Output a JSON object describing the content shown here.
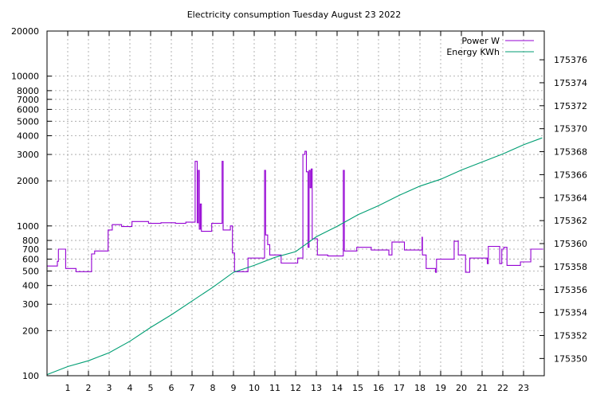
{
  "chart_data": {
    "type": "line",
    "title": "Electricity consumption Tuesday August 23 2022",
    "xlabel": "",
    "ylabel": "",
    "y2label": "",
    "xlim": [
      0,
      24
    ],
    "ylim": [
      100,
      20000
    ],
    "yscale": "log",
    "y2lim": [
      175348.5,
      175378.5
    ],
    "x_ticks": [
      1,
      2,
      3,
      4,
      5,
      6,
      7,
      8,
      9,
      10,
      11,
      12,
      13,
      14,
      15,
      16,
      17,
      18,
      19,
      20,
      21,
      22,
      23
    ],
    "y_ticks": [
      100,
      200,
      300,
      400,
      500,
      600,
      700,
      800,
      1000,
      2000,
      3000,
      4000,
      5000,
      6000,
      7000,
      8000,
      10000,
      20000
    ],
    "y_tick_labels": [
      "100",
      "200",
      "300",
      "400",
      "500",
      "600",
      "700",
      "800",
      "1000",
      "2000",
      "3000",
      "4000",
      "5000",
      "6000",
      "7000",
      "8000",
      "10000",
      "20000"
    ],
    "y2_ticks": [
      175350,
      175352,
      175354,
      175356,
      175358,
      175360,
      175362,
      175364,
      175366,
      175368,
      175370,
      175372,
      175374,
      175376
    ],
    "grid": true,
    "legend_position": "top-right",
    "series": [
      {
        "name": "Power W",
        "axis": "left",
        "color": "#9400d3",
        "style": "step",
        "points": [
          [
            0,
            540
          ],
          [
            0.5,
            580
          ],
          [
            0.55,
            700
          ],
          [
            0.9,
            520
          ],
          [
            1.4,
            495
          ],
          [
            2.15,
            650
          ],
          [
            2.3,
            680
          ],
          [
            2.95,
            940
          ],
          [
            3.15,
            1020
          ],
          [
            3.6,
            990
          ],
          [
            4.1,
            1070
          ],
          [
            4.9,
            1040
          ],
          [
            5.5,
            1050
          ],
          [
            6.2,
            1040
          ],
          [
            6.7,
            1060
          ],
          [
            7.15,
            2700
          ],
          [
            7.25,
            1050
          ],
          [
            7.3,
            2350
          ],
          [
            7.35,
            950
          ],
          [
            7.4,
            1400
          ],
          [
            7.45,
            920
          ],
          [
            7.95,
            1040
          ],
          [
            8.45,
            2700
          ],
          [
            8.5,
            940
          ],
          [
            8.85,
            1000
          ],
          [
            8.95,
            660
          ],
          [
            9.05,
            495
          ],
          [
            9.7,
            610
          ],
          [
            10.5,
            2350
          ],
          [
            10.55,
            870
          ],
          [
            10.65,
            750
          ],
          [
            10.75,
            640
          ],
          [
            11.3,
            565
          ],
          [
            12.1,
            610
          ],
          [
            12.35,
            3000
          ],
          [
            12.45,
            3150
          ],
          [
            12.52,
            2300
          ],
          [
            12.6,
            720
          ],
          [
            12.65,
            2350
          ],
          [
            12.7,
            1800
          ],
          [
            12.75,
            2400
          ],
          [
            12.8,
            820
          ],
          [
            13.05,
            640
          ],
          [
            13.55,
            630
          ],
          [
            14.3,
            2350
          ],
          [
            14.35,
            680
          ],
          [
            14.95,
            720
          ],
          [
            15.65,
            690
          ],
          [
            16.5,
            640
          ],
          [
            16.65,
            780
          ],
          [
            17.25,
            690
          ],
          [
            18.1,
            840
          ],
          [
            18.12,
            640
          ],
          [
            18.3,
            520
          ],
          [
            18.75,
            490
          ],
          [
            18.8,
            600
          ],
          [
            19.65,
            790
          ],
          [
            19.85,
            640
          ],
          [
            20.2,
            490
          ],
          [
            20.4,
            610
          ],
          [
            21.25,
            560
          ],
          [
            21.3,
            730
          ],
          [
            21.85,
            560
          ],
          [
            21.95,
            700
          ],
          [
            22.05,
            720
          ],
          [
            22.2,
            545
          ],
          [
            22.85,
            575
          ],
          [
            23.35,
            700
          ],
          [
            23.85,
            700
          ]
        ]
      },
      {
        "name": "Energy KWh",
        "axis": "right",
        "color": "#009e73",
        "style": "line",
        "points": [
          [
            0,
            175348.6
          ],
          [
            1,
            175349.3
          ],
          [
            2,
            175349.8
          ],
          [
            3,
            175350.5
          ],
          [
            4,
            175351.5
          ],
          [
            5,
            175352.7
          ],
          [
            6,
            175353.8
          ],
          [
            7,
            175355.0
          ],
          [
            8,
            175356.2
          ],
          [
            9,
            175357.5
          ],
          [
            10,
            175358.1
          ],
          [
            11,
            175358.8
          ],
          [
            12,
            175359.3
          ],
          [
            13,
            175360.6
          ],
          [
            14,
            175361.5
          ],
          [
            15,
            175362.5
          ],
          [
            16,
            175363.3
          ],
          [
            17,
            175364.2
          ],
          [
            18,
            175365.0
          ],
          [
            19,
            175365.6
          ],
          [
            20,
            175366.4
          ],
          [
            21,
            175367.1
          ],
          [
            22,
            175367.8
          ],
          [
            23,
            175368.6
          ],
          [
            23.9,
            175369.2
          ]
        ]
      }
    ]
  }
}
